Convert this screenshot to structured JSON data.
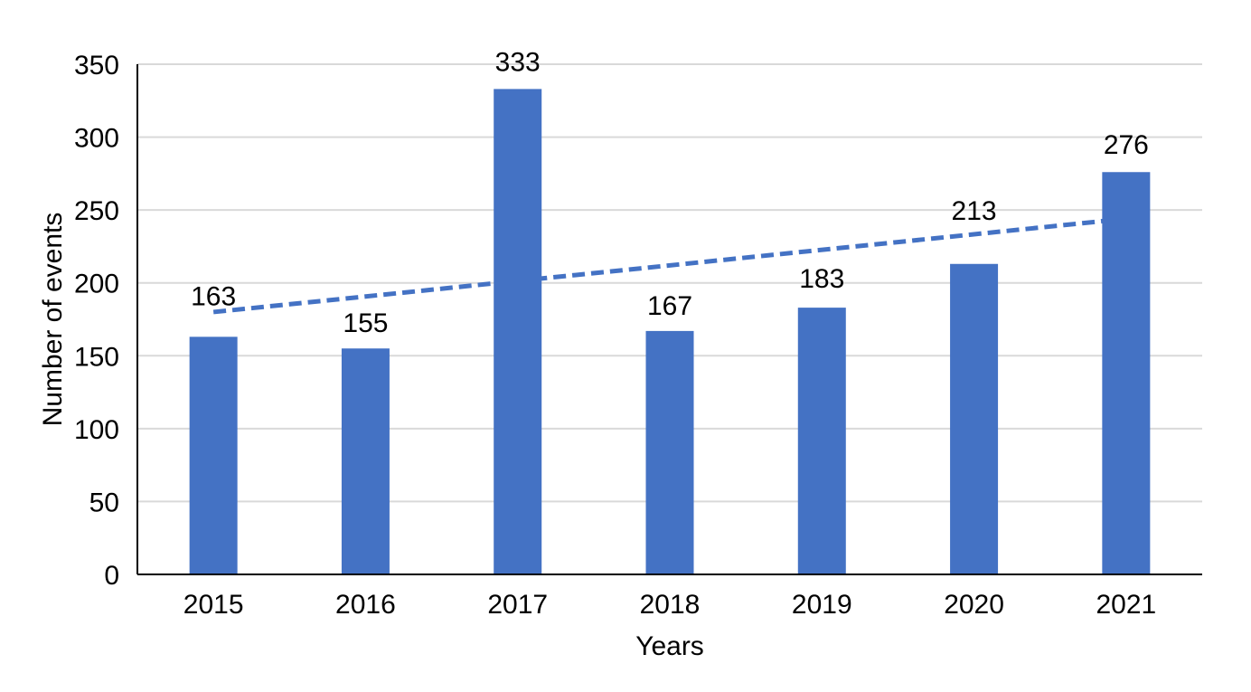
{
  "chart_data": {
    "type": "bar",
    "categories": [
      "2015",
      "2016",
      "2017",
      "2018",
      "2019",
      "2020",
      "2021"
    ],
    "values": [
      163,
      155,
      333,
      167,
      183,
      213,
      276
    ],
    "data_labels": [
      "163",
      "155",
      "333",
      "167",
      "183",
      "213",
      "276"
    ],
    "xlabel": "Years",
    "ylabel": "Number of events",
    "ylim": [
      0,
      350
    ],
    "yticks": [
      0,
      50,
      100,
      150,
      200,
      250,
      300,
      350
    ],
    "grid": true,
    "bar_color": "#4472C4",
    "trendline": {
      "type": "linear",
      "style": "dashed",
      "color": "#4472C4",
      "start_value": 180,
      "end_value": 244
    }
  }
}
